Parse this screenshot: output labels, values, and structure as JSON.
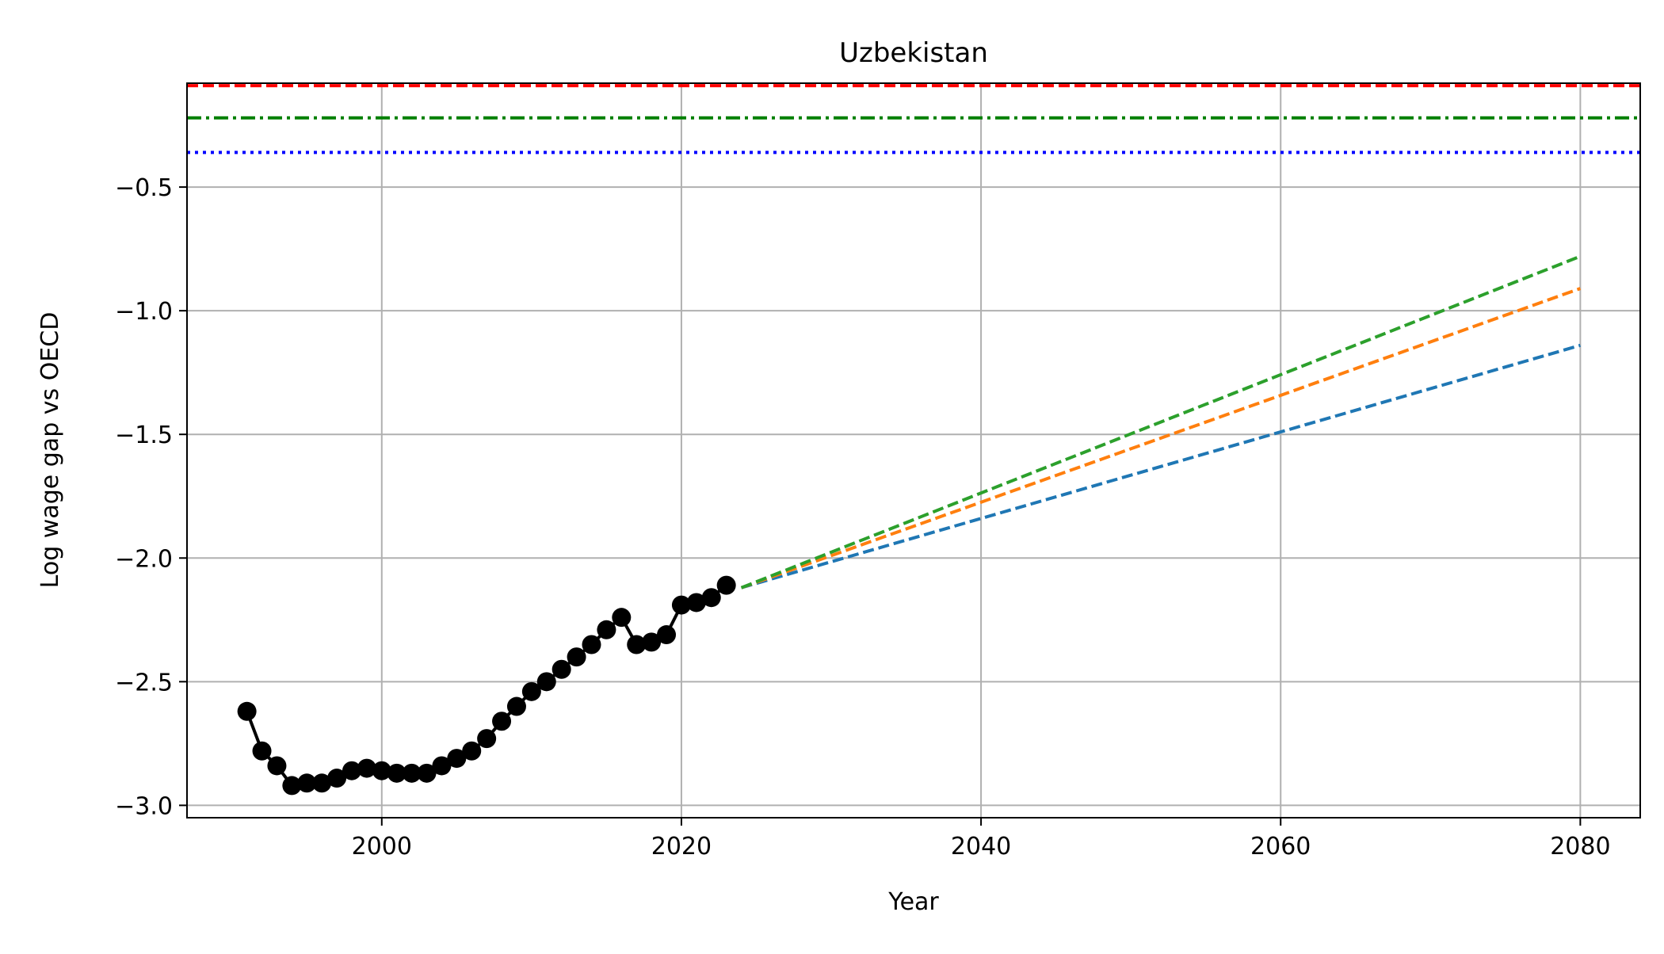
{
  "chart_data": {
    "type": "line",
    "title": "Uzbekistan",
    "xlabel": "Year",
    "ylabel": "Log wage gap vs OECD",
    "xlim": [
      1987,
      2084
    ],
    "ylim": [
      -3.05,
      -0.08
    ],
    "xticks": [
      2000,
      2020,
      2040,
      2060,
      2080
    ],
    "xtick_labels": [
      "2000",
      "2020",
      "2040",
      "2060",
      "2080"
    ],
    "yticks": [
      -3.0,
      -2.5,
      -2.0,
      -1.5,
      -1.0,
      -0.5
    ],
    "ytick_labels": [
      "−3.0",
      "−2.5",
      "−2.0",
      "−1.5",
      "−1.0",
      "−0.5"
    ],
    "grid": true,
    "historical": {
      "color": "#000000",
      "marker": "circle",
      "x": [
        1991,
        1992,
        1993,
        1994,
        1995,
        1996,
        1997,
        1998,
        1999,
        2000,
        2001,
        2002,
        2003,
        2004,
        2005,
        2006,
        2007,
        2008,
        2009,
        2010,
        2011,
        2012,
        2013,
        2014,
        2015,
        2016,
        2017,
        2018,
        2019,
        2020,
        2021,
        2022,
        2023
      ],
      "y": [
        -2.62,
        -2.78,
        -2.84,
        -2.92,
        -2.91,
        -2.91,
        -2.89,
        -2.86,
        -2.85,
        -2.86,
        -2.87,
        -2.87,
        -2.87,
        -2.84,
        -2.81,
        -2.78,
        -2.73,
        -2.66,
        -2.6,
        -2.54,
        -2.5,
        -2.45,
        -2.4,
        -2.35,
        -2.29,
        -2.24,
        -2.35,
        -2.34,
        -2.31,
        -2.19,
        -2.18,
        -2.16,
        -2.11
      ]
    },
    "projections": [
      {
        "color": "#1f77b4",
        "style": "dashed",
        "x": [
          2024,
          2080
        ],
        "y": [
          -2.12,
          -1.14
        ]
      },
      {
        "color": "#ff7f0e",
        "style": "dashed",
        "x": [
          2024,
          2080
        ],
        "y": [
          -2.12,
          -0.91
        ]
      },
      {
        "color": "#2ca02c",
        "style": "dashed",
        "x": [
          2024,
          2080
        ],
        "y": [
          -2.12,
          -0.78
        ]
      }
    ],
    "reference_lines": [
      {
        "color": "#ff0000",
        "style": "dashed",
        "y": -0.09
      },
      {
        "color": "#008000",
        "style": "dashdot",
        "y": -0.22
      },
      {
        "color": "#0000ff",
        "style": "dotted",
        "y": -0.36
      }
    ]
  }
}
